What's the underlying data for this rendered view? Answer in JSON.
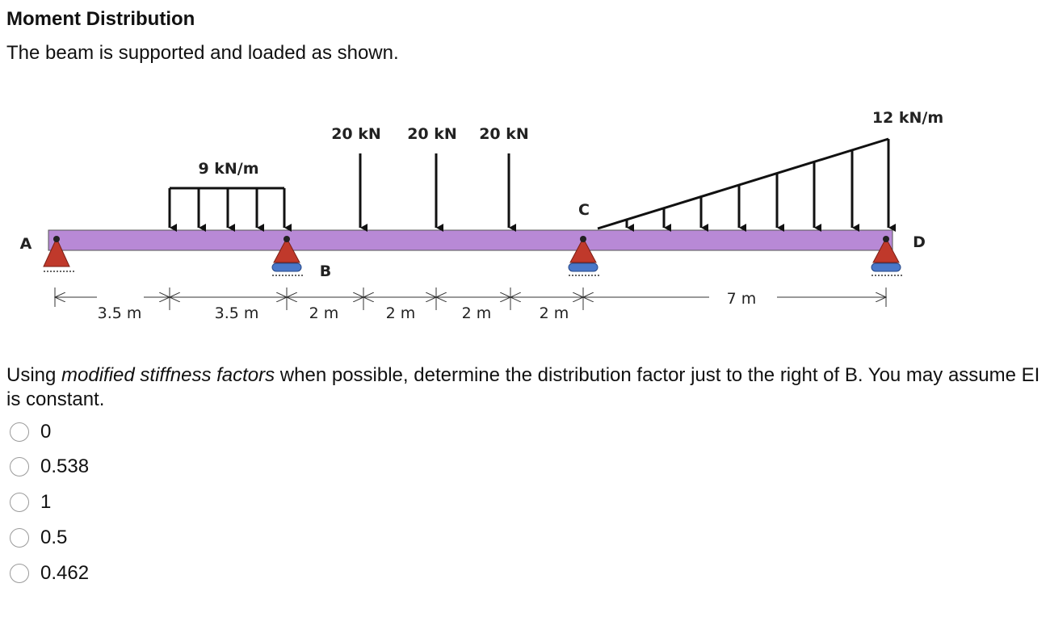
{
  "header": {
    "title": "Moment Distribution",
    "intro": "The beam is supported and loaded as shown."
  },
  "figure": {
    "point_loads": [
      "20 kN",
      "20 kN",
      "20 kN"
    ],
    "uniform_load": "9 kN/m",
    "triangular_load": "12 kN/m",
    "supports": [
      "A",
      "B",
      "C",
      "D"
    ],
    "dimensions": [
      "3.5 m",
      "3.5 m",
      "2 m",
      "2 m",
      "2 m",
      "2 m",
      "7 m"
    ]
  },
  "question": {
    "parts": [
      "Using ",
      "modified stiffness factors",
      " when possible, determine the distribution factor just to the right of B.  You may assume EI is constant."
    ]
  },
  "options": [
    "0",
    "0.538",
    "1",
    "0.5",
    "0.462"
  ]
}
